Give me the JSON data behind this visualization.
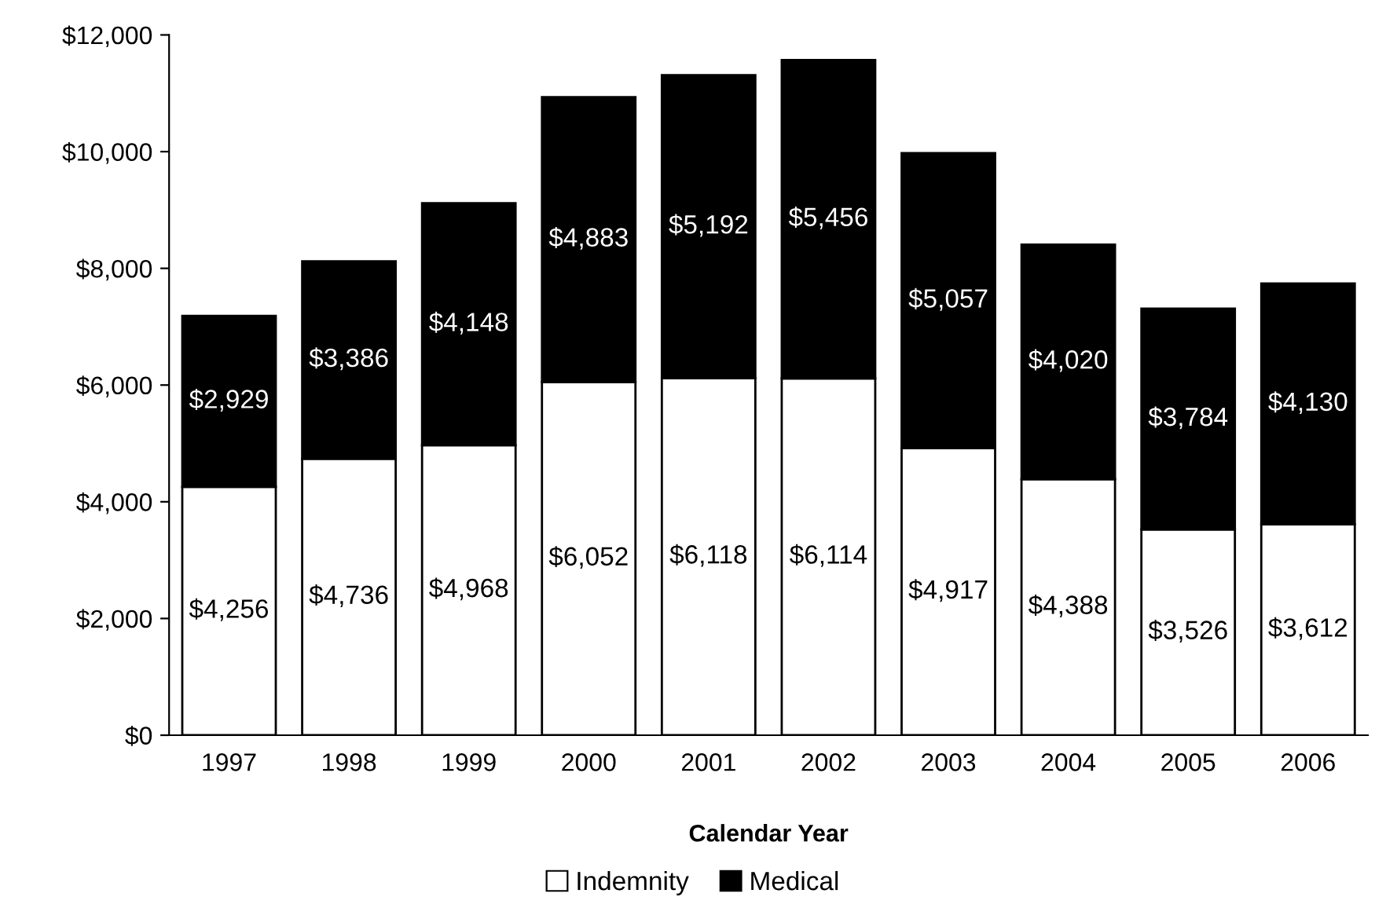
{
  "chart_data": {
    "type": "bar",
    "stacked": true,
    "xlabel": "Calendar Year",
    "categories": [
      "1997",
      "1998",
      "1999",
      "2000",
      "2001",
      "2002",
      "2003",
      "2004",
      "2005",
      "2006"
    ],
    "series": [
      {
        "name": "Indemnity",
        "color": "#ffffff",
        "values": [
          4256,
          4736,
          4968,
          6052,
          6118,
          6114,
          4917,
          4388,
          3526,
          3612
        ],
        "value_labels": [
          "$4,256",
          "$4,736",
          "$4,968",
          "$6,052",
          "$6,118",
          "$6,114",
          "$4,917",
          "$4,388",
          "$3,526",
          "$3,612"
        ]
      },
      {
        "name": "Medical",
        "color": "#000000",
        "values": [
          2929,
          3386,
          4148,
          4883,
          5192,
          5456,
          5057,
          4020,
          3784,
          4130
        ],
        "value_labels": [
          "$2,929",
          "$3,386",
          "$4,148",
          "$4,883",
          "$5,192",
          "$5,456",
          "$5,057",
          "$4,020",
          "$3,784",
          "$4,130"
        ]
      }
    ],
    "ylim": [
      0,
      12000
    ],
    "yticks": [
      {
        "value": 0,
        "label": "$0"
      },
      {
        "value": 2000,
        "label": "$2,000"
      },
      {
        "value": 4000,
        "label": "$4,000"
      },
      {
        "value": 6000,
        "label": "$6,000"
      },
      {
        "value": 8000,
        "label": "$8,000"
      },
      {
        "value": 10000,
        "label": "$10,000"
      },
      {
        "value": 12000,
        "label": "$12,000"
      }
    ],
    "grid": false,
    "legend": "bottom"
  }
}
